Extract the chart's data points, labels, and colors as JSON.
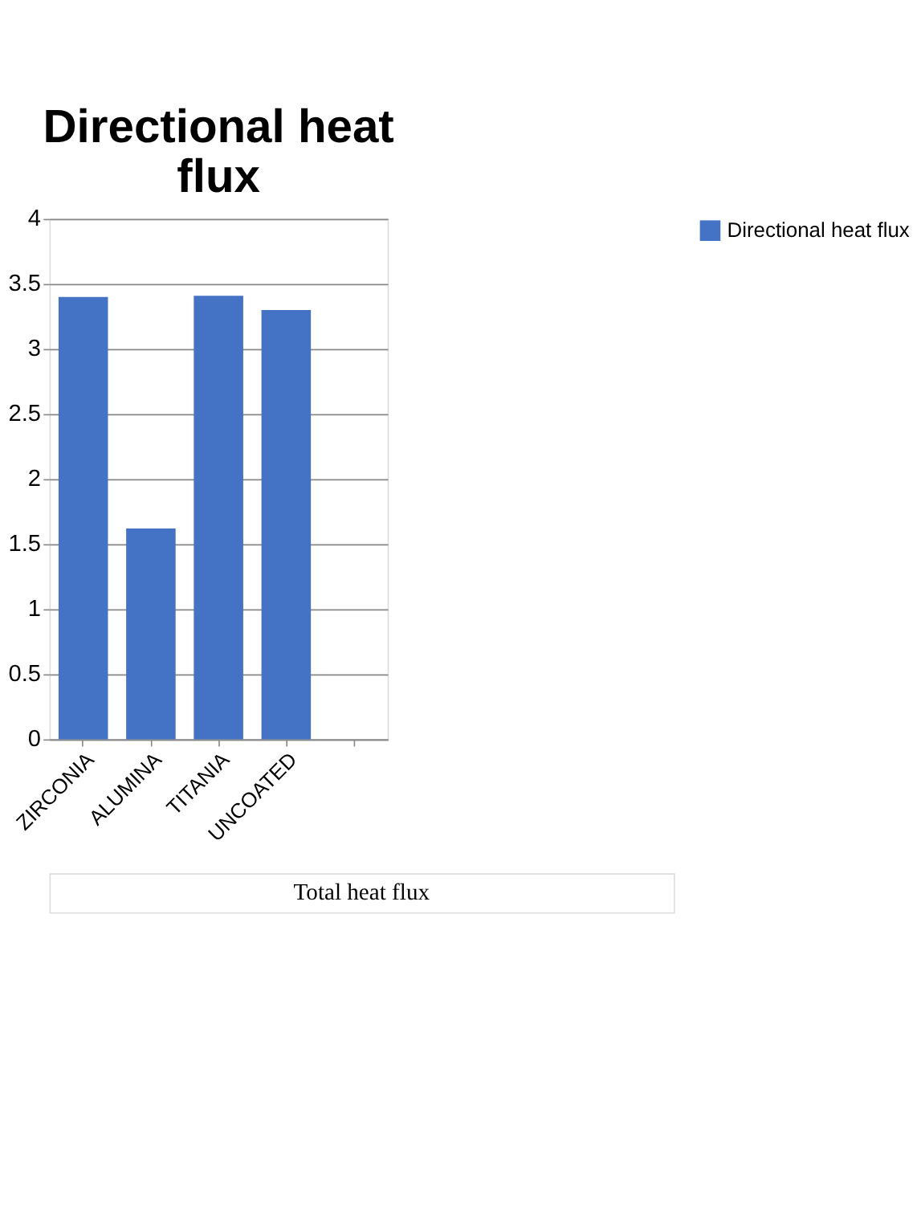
{
  "chart_data": {
    "type": "bar",
    "title": "Directional heat flux",
    "categories": [
      "ZIRCONIA",
      "ALUMINA",
      "TITANIA",
      "UNCOATED",
      null
    ],
    "series": [
      {
        "name": "Directional heat flux",
        "color": "#4472c4",
        "values": [
          3.4,
          1.62,
          3.41,
          3.3,
          null
        ]
      }
    ],
    "ylim": [
      0,
      4
    ],
    "yticks": [
      0,
      0.5,
      1,
      1.5,
      2,
      2.5,
      3,
      3.5,
      4
    ],
    "grid": "y",
    "legend": "right",
    "annotations": [
      "Total heat flux"
    ]
  }
}
